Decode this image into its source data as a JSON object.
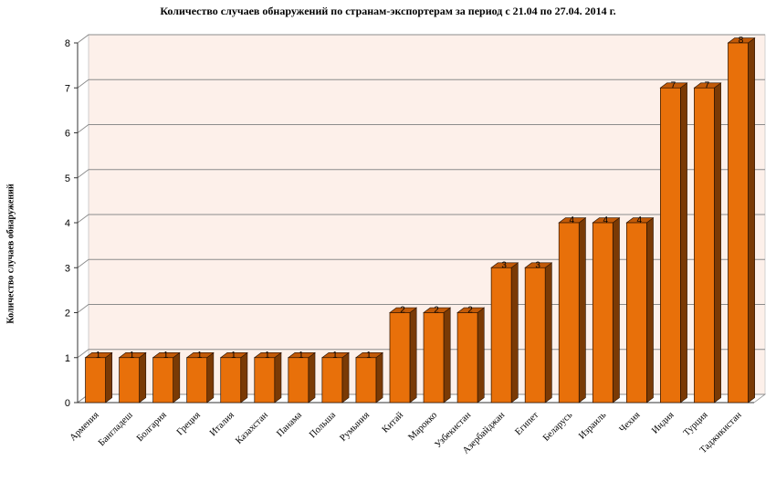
{
  "chart_data": {
    "type": "bar",
    "title": "Количество случаев обнаружений по странам-экспортерам за период с 21.04 по 27.04. 2014 г.",
    "ylabel": "Количество случаев обнаружений",
    "xlabel": "",
    "categories": [
      "Армения",
      "Бангладеш",
      "Болгария",
      "Греция",
      "Италия",
      "Казахстан",
      "Панама",
      "Польша",
      "Румыния",
      "Китай",
      "Марокко",
      "Узбекистан",
      "Азербайджан",
      "Египет",
      "Беларусь",
      "Израиль",
      "Чехия",
      "Индия",
      "Турция",
      "Таджикистан"
    ],
    "values": [
      1,
      1,
      1,
      1,
      1,
      1,
      1,
      1,
      1,
      2,
      2,
      2,
      3,
      3,
      4,
      4,
      4,
      7,
      7,
      8
    ],
    "ylim": [
      0,
      8
    ],
    "yticks": [
      0,
      1,
      2,
      3,
      4,
      5,
      6,
      7,
      8
    ],
    "grid": true,
    "data_labels": true,
    "legend": "none",
    "colors": {
      "bar_front": "#e8700a",
      "bar_side": "#7a3a05",
      "bar_top": "#c25a08",
      "plot_bg": "#fdf0ea"
    }
  }
}
